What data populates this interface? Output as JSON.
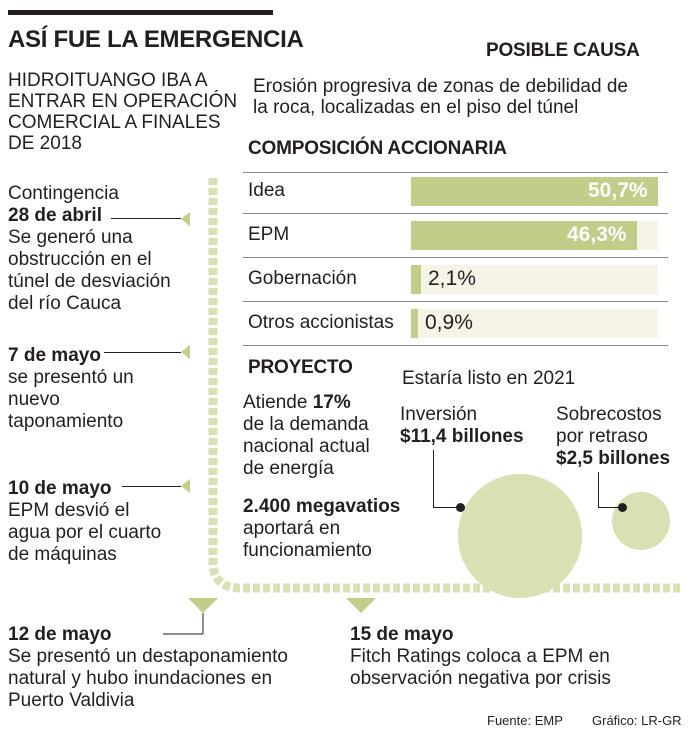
{
  "header": {
    "title": "ASÍ FUE LA EMERGENCIA",
    "subhead_lines": [
      "HIDROITUANGO IBA A",
      "ENTRAR EN  OPERACIÓN",
      "COMERCIAL A FINALES",
      "DE 2018"
    ]
  },
  "cause": {
    "title": "POSIBLE CAUSA",
    "lines": [
      "Erosión progresiva de zonas de debilidad de",
      "la roca, localizadas en el piso del túnel"
    ]
  },
  "timeline": {
    "events": [
      {
        "lead": "Contingencia",
        "date": "28 de abril",
        "lines": [
          "Se generó una",
          "obstrucción en el",
          "túnel de desviación",
          "del río Cauca"
        ]
      },
      {
        "date": "7 de mayo",
        "lines": [
          "se presentó un",
          "nuevo",
          "taponamiento"
        ]
      },
      {
        "date": "10 de mayo",
        "lines": [
          "EPM desvió el",
          "agua por el cuarto",
          "de máquinas"
        ]
      },
      {
        "date": "12 de mayo",
        "lines": [
          "Se presentó un destaponamiento",
          "natural y hubo inundaciones en",
          "Puerto Valdivia"
        ]
      },
      {
        "date": "15 de mayo",
        "lines": [
          "Fitch Ratings coloca a EPM en",
          "observación negativa por crisis"
        ]
      }
    ]
  },
  "chart_data": {
    "type": "bar",
    "title": "COMPOSICIÓN ACCIONARIA",
    "categories": [
      "Idea",
      "EPM",
      "Gobernación",
      "Otros accionistas"
    ],
    "values": [
      50.7,
      46.3,
      2.1,
      0.9
    ],
    "value_labels": [
      "50,7%",
      "46,3%",
      "2,1%",
      "0,9%"
    ],
    "ylim": [
      0,
      50.7
    ],
    "colors": {
      "bar": "#c2cd8a",
      "track": "#f5f4e6"
    }
  },
  "project": {
    "title": "PROYECTO",
    "attends_lines": [
      "Atiende ",
      "17%",
      "de la demanda",
      "nacional actual",
      "de energía"
    ],
    "mw_bold": "2.400 megavatios",
    "mw_lines": [
      "aportará en",
      "funcionamiento"
    ],
    "ready": "Estaría listo en 2021",
    "investment_label": "Inversión",
    "investment_value": "$11,4 billones",
    "investment_amount": 11.4,
    "overrun_label_lines": [
      "Sobrecostos",
      "por retraso"
    ],
    "overrun_value": "$2,5 billones",
    "overrun_amount": 2.5
  },
  "footer": {
    "source": "Fuente: EMP",
    "credit": "Gráfico: LR-GR"
  },
  "colors": {
    "accent": "#c2cd8a",
    "accent_light": "#d9e0b4"
  }
}
